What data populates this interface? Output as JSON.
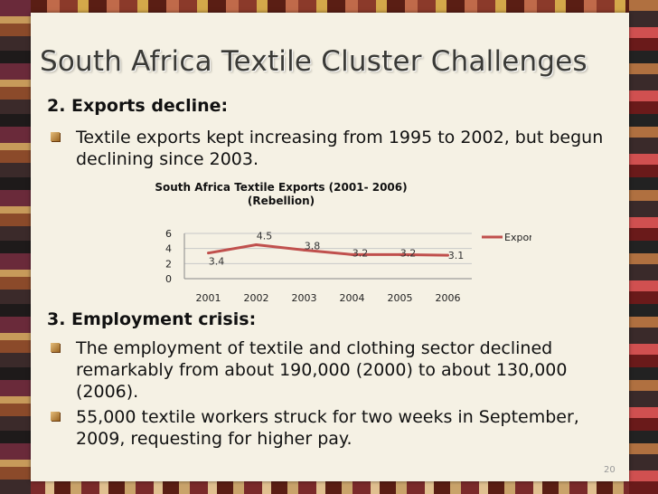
{
  "slide": {
    "title": "South Africa Textile Cluster Challenges",
    "sections": [
      {
        "heading": "2. Exports decline:",
        "bullets": [
          "Textile exports  kept increasing from 1995 to 2002, but begun declining since 2003."
        ]
      },
      {
        "heading": "3. Employment crisis:",
        "bullets": [
          "The employment of textile and clothing sector declined remarkably from about 190,000 (2000) to about 130,000 (2006).",
          "55,000 textile workers struck for two weeks in September, 2009, requesting for higher pay."
        ]
      }
    ],
    "page_number": "20"
  },
  "chart_data": {
    "type": "line",
    "title": "South Africa Textile Exports (2001- 2006) (Rebellion)",
    "title_lines": [
      "South Africa Textile Exports (2001- 2006)",
      "(Rebellion)"
    ],
    "categories": [
      "2001",
      "2002",
      "2003",
      "2004",
      "2005",
      "2006"
    ],
    "series": [
      {
        "name": "Exports",
        "values": [
          3.4,
          4.5,
          3.8,
          3.2,
          3.2,
          3.1
        ],
        "color": "#c0504d"
      }
    ],
    "data_labels": [
      "3.4",
      "4.5",
      "3.8",
      "3.2",
      "3.2",
      "3.1"
    ],
    "y_ticks": [
      "0",
      "2",
      "4",
      "6"
    ],
    "ylim": [
      0,
      6
    ],
    "grid": true,
    "legend_position": "top-right"
  }
}
